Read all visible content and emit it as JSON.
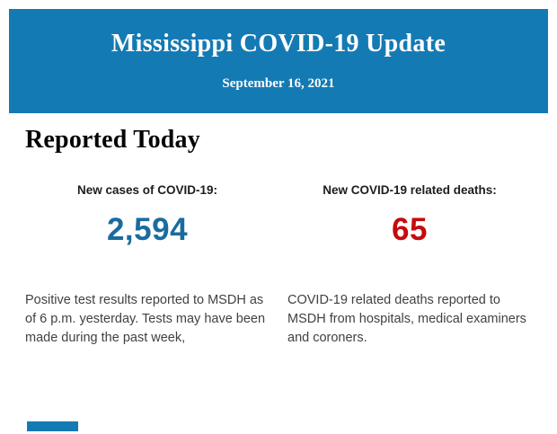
{
  "header": {
    "title": "Mississippi COVID-19 Update",
    "date": "September 16, 2021",
    "background_color": "#147AB4",
    "text_color": "#FFFFFF"
  },
  "section": {
    "heading": "Reported Today"
  },
  "stats": [
    {
      "label": "New cases of COVID-19:",
      "value": "2,594",
      "value_color": "#1B6B9F",
      "description": "Positive test results reported to MSDH as of 6 p.m. yesterday. Tests may have been made during the past week,"
    },
    {
      "label": "New COVID-19 related deaths:",
      "value": "65",
      "value_color": "#C60B0E",
      "description": "COVID-19 related deaths reported to MSDH from hospitals, medical examiners and coroners."
    }
  ],
  "footer": {
    "accent_color": "#147AB4"
  }
}
